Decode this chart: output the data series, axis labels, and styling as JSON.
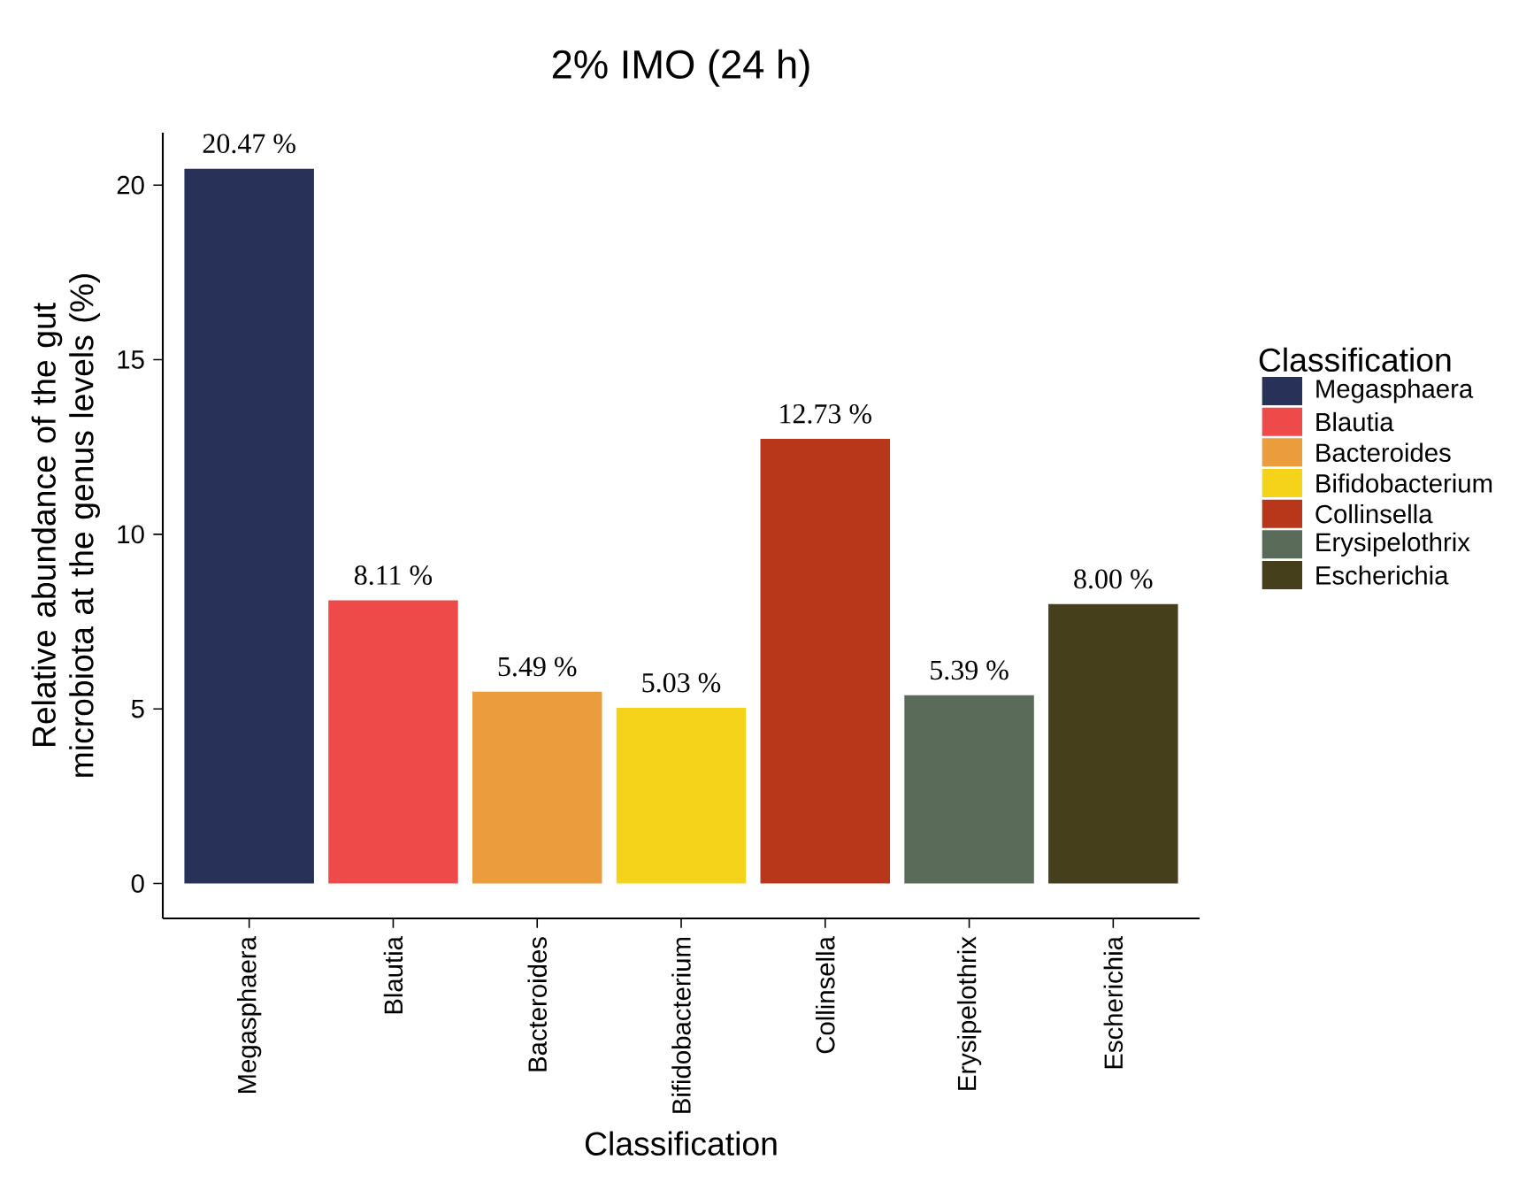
{
  "chart_data": {
    "type": "bar",
    "title": "2% IMO (24 h)",
    "xlabel": "Classification",
    "ylabel": "Relative abundance of the gut microbiota at the genus levels (%)",
    "legend_title": "Classification",
    "categories": [
      "Megasphaera",
      "Blautia",
      "Bacteroides",
      "Bifidobacterium",
      "Collinsella",
      "Erysipelothrix",
      "Escherichia"
    ],
    "values": [
      20.47,
      8.11,
      5.49,
      5.03,
      12.73,
      5.39,
      8.0
    ],
    "value_labels": [
      "20.47 %",
      "8.11 %",
      "5.49 %",
      "5.03 %",
      "12.73 %",
      "5.39 %",
      "8.00 %"
    ],
    "colors": [
      "#283259",
      "#ef4a4a",
      "#eb9c3c",
      "#f5d31a",
      "#b8371a",
      "#5b6b5a",
      "#463f1b"
    ],
    "ylim": [
      -1.0,
      21.5
    ],
    "yticks": [
      0,
      5,
      10,
      15,
      20
    ]
  }
}
